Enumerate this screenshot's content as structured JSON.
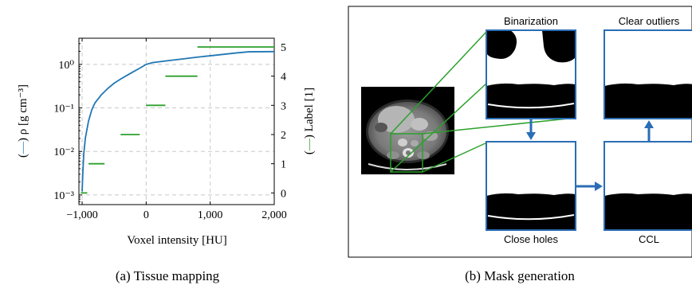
{
  "colors": {
    "density": "#1f77b4",
    "label": "#2ca02c",
    "panel_border": "#2a6db5",
    "arrow": "#2a6db5",
    "zoom_lines": "#2ca02c"
  },
  "figure_a": {
    "caption": "(a) Tissue mapping",
    "xlabel": "Voxel intensity [HU]",
    "ylabel_left_prefix": "(",
    "ylabel_left_dash": "—",
    "ylabel_left_rest": ") ρ [g cm⁻³]",
    "ylabel_right_prefix": "(",
    "ylabel_right_dash": "—",
    "ylabel_right_rest": ") Label [1]"
  },
  "chart_data": {
    "type": "line",
    "title": "",
    "xlabel": "Voxel intensity [HU]",
    "ylabel": "(—) ρ [g cm⁻³]",
    "y2label": "(—) Label [1]",
    "xlim": [
      -1050,
      2000
    ],
    "ylim": [
      0.0006,
      4
    ],
    "yscale": "log",
    "y2lim": [
      -0.4,
      5.3
    ],
    "xticks": [
      -1000,
      0,
      1000,
      2000
    ],
    "xtick_labels": [
      "−1,000",
      "0",
      "1,000",
      "2,000"
    ],
    "yticks": [
      0.001,
      0.01,
      0.1,
      1
    ],
    "ytick_labels": [
      "10⁻³",
      "10⁻²",
      "10⁻¹",
      "10⁰"
    ],
    "y2ticks": [
      0,
      1,
      2,
      3,
      4,
      5
    ],
    "y2tick_labels": [
      "0",
      "1",
      "2",
      "3",
      "4",
      "5"
    ],
    "grid": true,
    "series": [
      {
        "axis": "left",
        "x": [
          -1000,
          -990,
          -975,
          -950,
          -900,
          -850,
          -800,
          -700,
          -600,
          -500,
          -400,
          -300,
          -200,
          -100,
          0,
          100,
          200,
          400,
          600,
          800,
          1000,
          1200,
          1400,
          1600,
          1800,
          2000
        ],
        "values": [
          0.0012,
          0.003,
          0.0085,
          0.02,
          0.05,
          0.09,
          0.13,
          0.2,
          0.28,
          0.37,
          0.46,
          0.56,
          0.68,
          0.82,
          1.0,
          1.1,
          1.15,
          1.25,
          1.35,
          1.47,
          1.58,
          1.7,
          1.83,
          1.95,
          1.96,
          1.97
        ]
      }
    ],
    "label_steps": [
      {
        "x0": -1020,
        "x1": -920,
        "label": 0
      },
      {
        "x0": -900,
        "x1": -650,
        "label": 1
      },
      {
        "x0": -400,
        "x1": -100,
        "label": 2
      },
      {
        "x0": 0,
        "x1": 300,
        "label": 3
      },
      {
        "x0": 300,
        "x1": 800,
        "label": 4
      },
      {
        "x0": 800,
        "x1": 2000,
        "label": 5
      }
    ]
  },
  "figure_b": {
    "caption": "(b) Mask generation",
    "titles": {
      "binarization": "Binarization",
      "clear_outliers": "Clear outliers",
      "close_holes": "Close holes",
      "ccl": "CCL"
    }
  }
}
